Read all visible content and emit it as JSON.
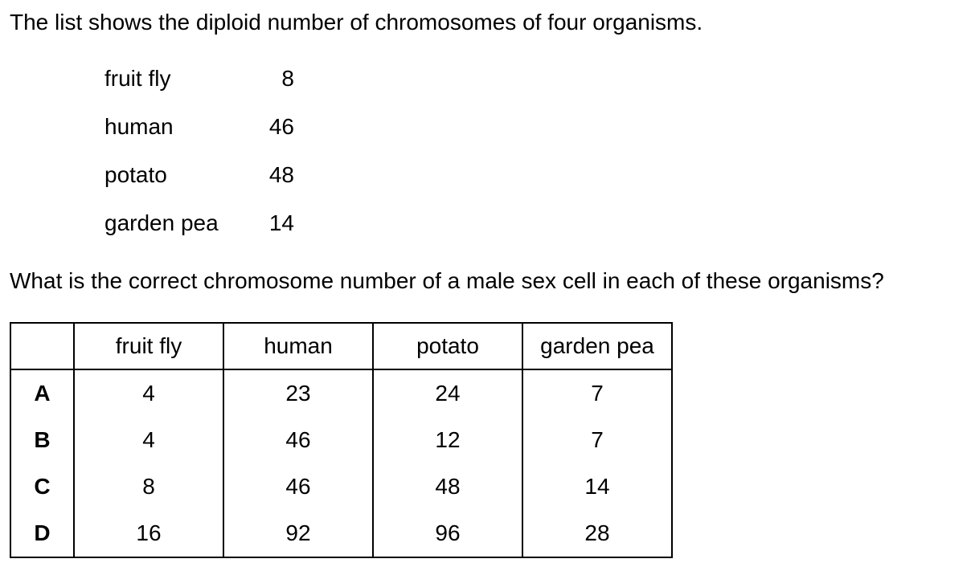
{
  "intro": "The list shows the diploid number of chromosomes of four organisms.",
  "list": [
    {
      "name": "fruit fly",
      "number": "8"
    },
    {
      "name": "human",
      "number": "46"
    },
    {
      "name": "potato",
      "number": "48"
    },
    {
      "name": "garden pea",
      "number": "14"
    }
  ],
  "question": "What is the correct chromosome number of a male sex cell in each of these organisms?",
  "table": {
    "headers": [
      "",
      "fruit fly",
      "human",
      "potato",
      "garden pea"
    ],
    "rows": [
      {
        "letter": "A",
        "values": [
          "4",
          "23",
          "24",
          "7"
        ]
      },
      {
        "letter": "B",
        "values": [
          "4",
          "46",
          "12",
          "7"
        ]
      },
      {
        "letter": "C",
        "values": [
          "8",
          "46",
          "48",
          "14"
        ]
      },
      {
        "letter": "D",
        "values": [
          "16",
          "92",
          "96",
          "28"
        ]
      }
    ]
  }
}
